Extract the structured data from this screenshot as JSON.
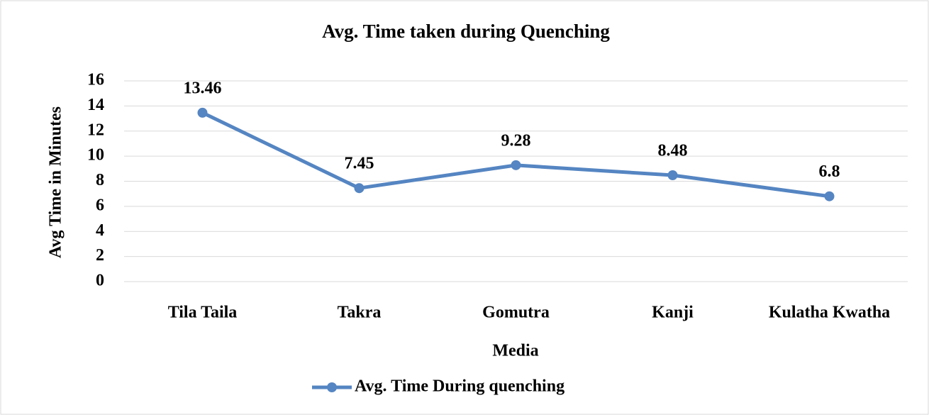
{
  "chart_data": {
    "type": "line",
    "title": "Avg. Time taken during Quenching",
    "x_label": "Media",
    "y_label": "Avg Time in Minutes",
    "categories": [
      "Tila Taila",
      "Takra",
      "Gomutra",
      "Kanji",
      "Kulatha Kwatha"
    ],
    "series": [
      {
        "name": "Avg. Time During quenching",
        "color": "#5585c2",
        "values": [
          13.46,
          7.45,
          9.28,
          8.48,
          6.8
        ]
      }
    ],
    "ylim": [
      0,
      16
    ],
    "yticks": [
      0,
      2,
      4,
      6,
      8,
      10,
      12,
      14,
      16
    ],
    "grid": true,
    "legend": "bottom"
  }
}
